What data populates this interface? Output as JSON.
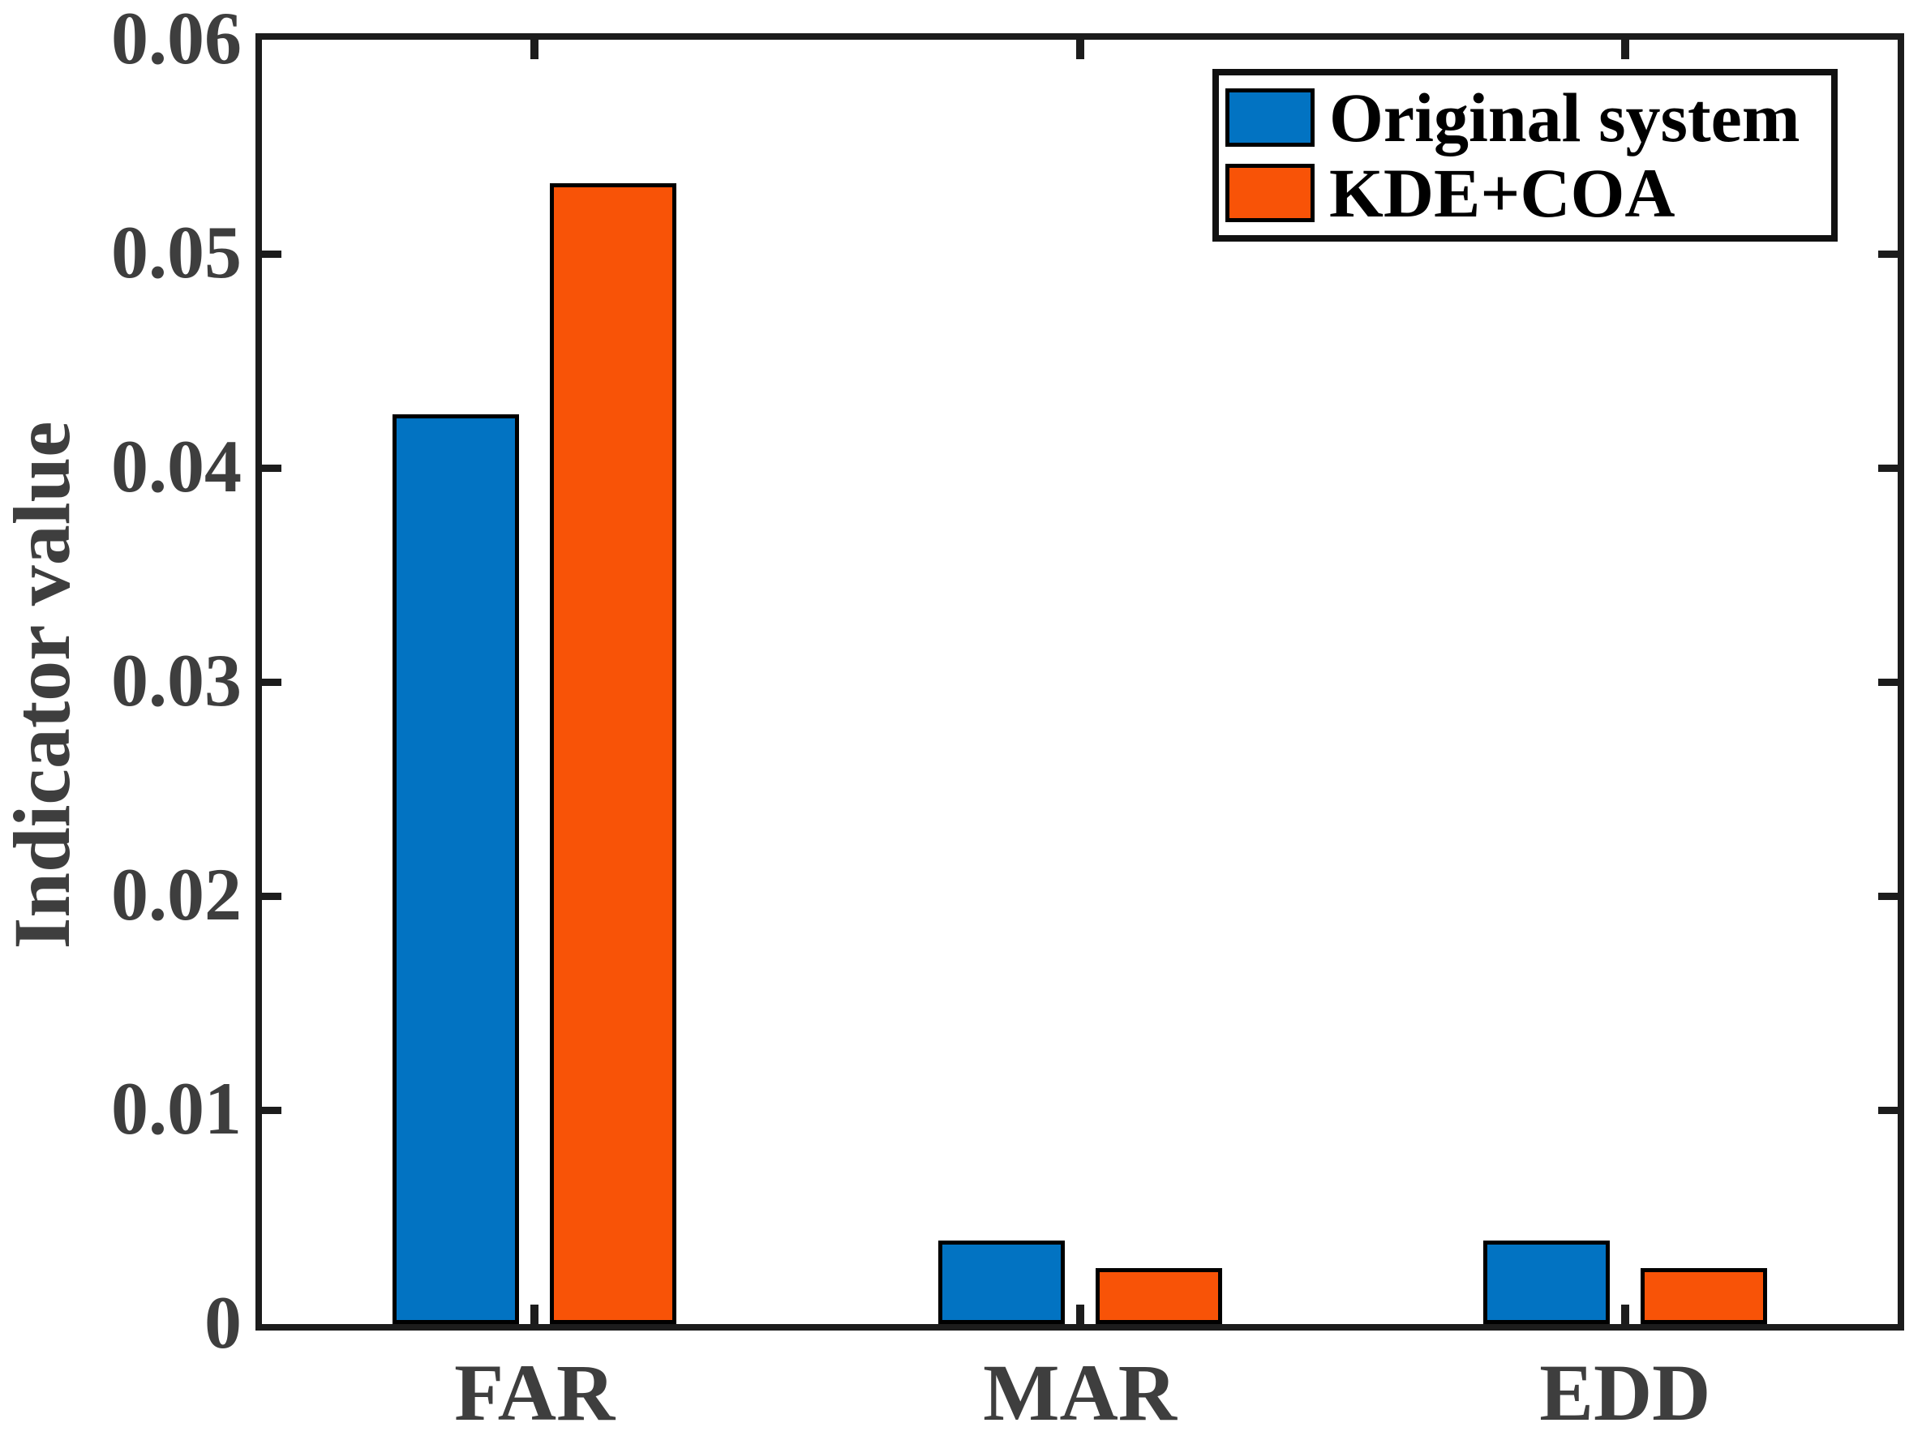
{
  "chart_data": {
    "type": "bar",
    "title": "",
    "categories": [
      "FAR",
      "MAR",
      "EDD"
    ],
    "series": [
      {
        "name": "Original system",
        "color": "#0273C2",
        "values": [
          0.0425,
          0.0039,
          0.0039
        ]
      },
      {
        "name": "KDE+COA",
        "color": "#F85307",
        "values": [
          0.0533,
          0.0026,
          0.0026
        ]
      }
    ],
    "xlabel": "",
    "ylabel": "Indicator value",
    "ylim": [
      0,
      0.06
    ],
    "yticks": [
      0,
      0.01,
      0.02,
      0.03,
      0.04,
      0.05,
      0.06
    ],
    "ytick_labels": [
      "0",
      "0.01",
      "0.02",
      "0.03",
      "0.04",
      "0.05",
      "0.06"
    ],
    "legend": {
      "position": "top-right",
      "entries": [
        "Original system",
        "KDE+COA"
      ]
    },
    "grid": false,
    "bar_outline_color": "#000000",
    "colors": {
      "axis": "#1C1C1C",
      "tick_label": "#3E3E3E",
      "background": "#FFFFFF"
    }
  }
}
